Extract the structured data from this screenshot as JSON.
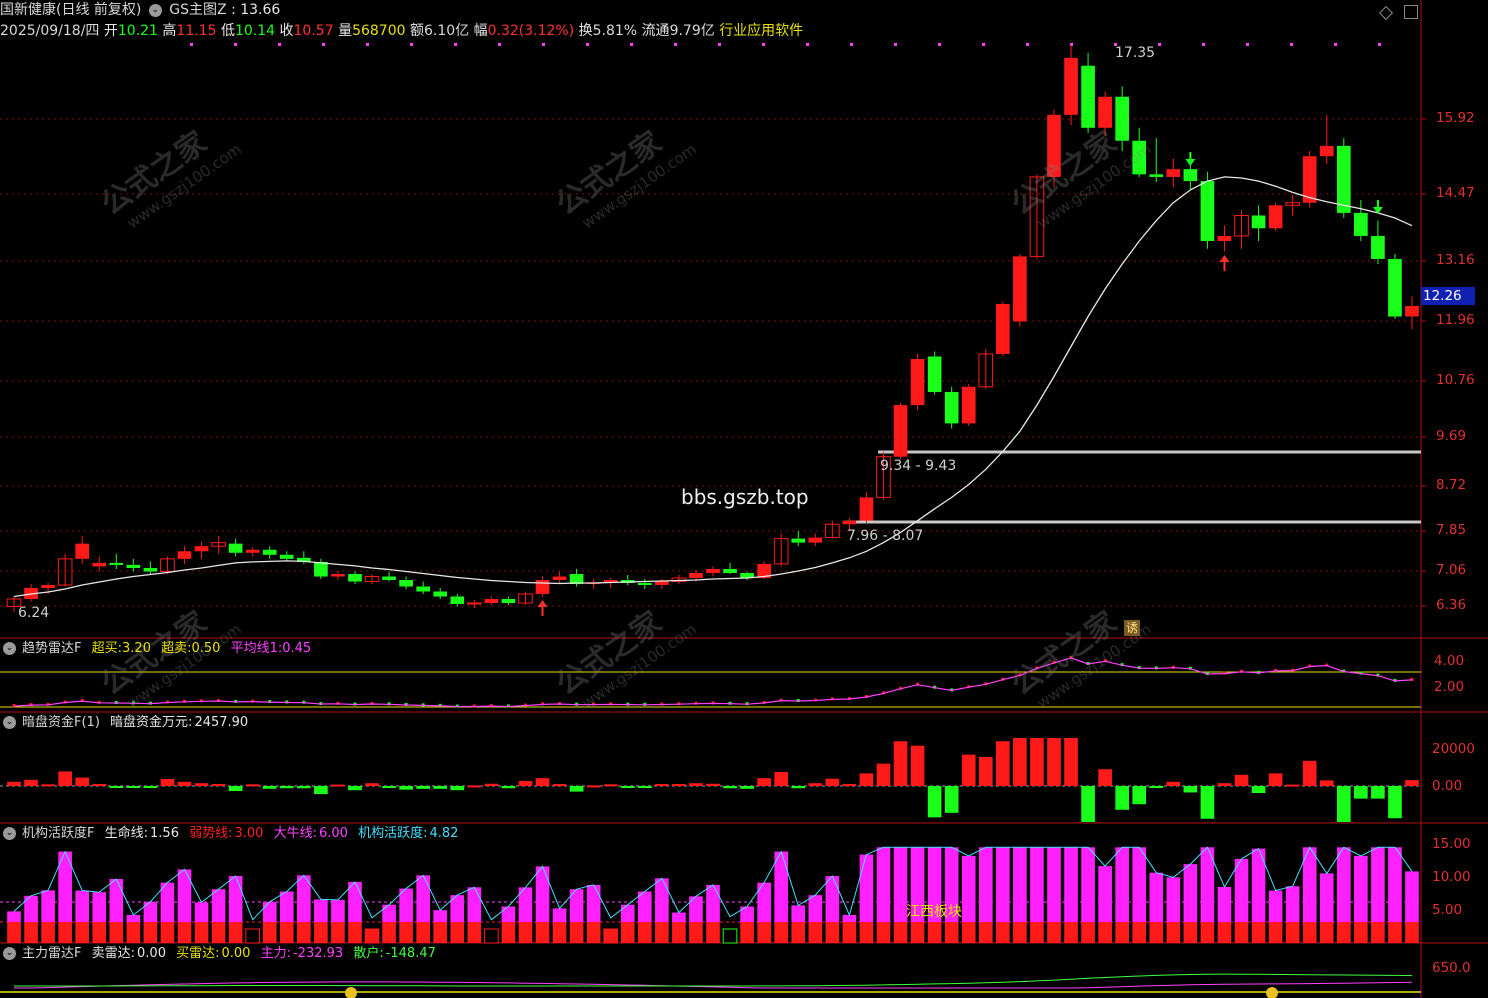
{
  "header": {
    "stock_name": "国新健康(日线 前复权)",
    "indicator_name": "GS主图Z",
    "indicator_value": ": 13.66",
    "date": "2025/09/18/四",
    "open_label": "开",
    "open": "10.21",
    "high_label": "高",
    "high": "11.15",
    "low_label": "低",
    "low": "10.14",
    "close_label": "收",
    "close": "10.57",
    "vol_label": "量",
    "vol": "568700",
    "amount_label": "额",
    "amount": "6.10亿",
    "chg_label": "幅",
    "chg": "0.32(3.12%)",
    "turnover_label": "换",
    "turnover": "5.81%",
    "float_label": "流通",
    "float": "9.79亿",
    "industry": "行业应用软件"
  },
  "main_chart": {
    "y_ticks": [
      "15.92",
      "14.47",
      "13.16",
      "11.96",
      "10.76",
      "9.69",
      "8.72",
      "7.85",
      "7.06",
      "6.36"
    ],
    "current_price_tag": "12.26",
    "high_mark": "17.35",
    "low_mark": "6.24",
    "zone_upper": "9.34 - 9.43",
    "zone_lower": "7.96 - 8.07",
    "site_text": "bbs.gszb.top",
    "badge": "诱"
  },
  "panel1": {
    "name": "趋势雷达F",
    "buy_label": "超买:",
    "buy": "3.20",
    "sell_label": "超卖:",
    "sell": "0.50",
    "avg_label": "平均线1:",
    "avg": "0.45",
    "y_ticks": [
      "4.00",
      "2.00"
    ]
  },
  "panel2": {
    "name": "暗盘资金F(1)",
    "fund_label": "暗盘资金万元:",
    "fund": "2457.90",
    "y_ticks": [
      "20000",
      "0.00"
    ]
  },
  "panel3": {
    "name": "机构活跃度F",
    "life_label": "生命线:",
    "life": "1.56",
    "weak_label": "弱势线:",
    "weak": "3.00",
    "bull_label": "大牛线:",
    "bull": "6.00",
    "act_label": "机构活跃度:",
    "act": "4.82",
    "y_ticks": [
      "15.00",
      "10.00",
      "5.00"
    ],
    "sector_text": "江西板块"
  },
  "panel4": {
    "name": "主力雷达F",
    "sell_label": "卖雷达:",
    "sell": "0.00",
    "buy_label": "买雷达:",
    "buy": "0.00",
    "main_label": "主力:",
    "main": "-232.93",
    "retail_label": "散户:",
    "retail": "-148.47",
    "y_ticks": [
      "650.0"
    ]
  },
  "watermark": {
    "cn": "公式之家",
    "url": "www.gszj100.com"
  },
  "colors": {
    "up": "#ff1a1a",
    "down": "#1aff1a",
    "ma": "#e8e8e8",
    "grid": "#7a1010",
    "axis": "#b01010"
  },
  "chart_data": {
    "type": "candlestick",
    "candles": [
      [
        6.35,
        6.55,
        6.24,
        6.5
      ],
      [
        6.5,
        6.8,
        6.45,
        6.72
      ],
      [
        6.72,
        6.82,
        6.6,
        6.78
      ],
      [
        6.78,
        7.4,
        6.75,
        7.3
      ],
      [
        7.3,
        7.75,
        7.2,
        7.6
      ],
      [
        7.15,
        7.35,
        7.05,
        7.22
      ],
      [
        7.22,
        7.4,
        7.1,
        7.18
      ],
      [
        7.18,
        7.3,
        7.05,
        7.12
      ],
      [
        7.12,
        7.25,
        7.0,
        7.05
      ],
      [
        7.05,
        7.35,
        7.0,
        7.3
      ],
      [
        7.3,
        7.55,
        7.2,
        7.45
      ],
      [
        7.45,
        7.65,
        7.3,
        7.55
      ],
      [
        7.55,
        7.75,
        7.4,
        7.62
      ],
      [
        7.6,
        7.7,
        7.35,
        7.42
      ],
      [
        7.42,
        7.52,
        7.35,
        7.48
      ],
      [
        7.48,
        7.55,
        7.3,
        7.38
      ],
      [
        7.38,
        7.45,
        7.25,
        7.3
      ],
      [
        7.32,
        7.45,
        7.2,
        7.24
      ],
      [
        7.24,
        7.3,
        6.9,
        6.95
      ],
      [
        6.95,
        7.05,
        6.88,
        7.0
      ],
      [
        7.0,
        7.05,
        6.8,
        6.85
      ],
      [
        6.85,
        7.0,
        6.8,
        6.95
      ],
      [
        6.95,
        7.05,
        6.85,
        6.88
      ],
      [
        6.88,
        6.95,
        6.7,
        6.75
      ],
      [
        6.75,
        6.85,
        6.6,
        6.65
      ],
      [
        6.65,
        6.72,
        6.5,
        6.55
      ],
      [
        6.55,
        6.6,
        6.35,
        6.4
      ],
      [
        6.4,
        6.48,
        6.32,
        6.42
      ],
      [
        6.42,
        6.55,
        6.38,
        6.5
      ],
      [
        6.5,
        6.55,
        6.38,
        6.42
      ],
      [
        6.42,
        6.65,
        6.38,
        6.6
      ],
      [
        6.6,
        6.95,
        6.55,
        6.88
      ],
      [
        6.88,
        7.05,
        6.8,
        6.95
      ],
      [
        7.0,
        7.1,
        6.75,
        6.8
      ],
      [
        6.8,
        6.9,
        6.7,
        6.82
      ],
      [
        6.82,
        6.92,
        6.72,
        6.88
      ],
      [
        6.88,
        6.98,
        6.78,
        6.82
      ],
      [
        6.82,
        6.9,
        6.7,
        6.78
      ],
      [
        6.78,
        6.9,
        6.7,
        6.85
      ],
      [
        6.85,
        6.98,
        6.8,
        6.92
      ],
      [
        6.92,
        7.08,
        6.85,
        7.02
      ],
      [
        7.02,
        7.15,
        6.95,
        7.1
      ],
      [
        7.1,
        7.22,
        7.0,
        7.02
      ],
      [
        7.02,
        7.05,
        6.88,
        6.92
      ],
      [
        6.92,
        7.25,
        6.9,
        7.2
      ],
      [
        7.2,
        7.8,
        7.15,
        7.7
      ],
      [
        7.7,
        7.85,
        7.55,
        7.62
      ],
      [
        7.62,
        7.8,
        7.55,
        7.72
      ],
      [
        7.72,
        8.05,
        7.7,
        7.98
      ],
      [
        7.98,
        8.1,
        7.85,
        8.05
      ],
      [
        8.05,
        8.6,
        8.0,
        8.5
      ],
      [
        8.5,
        9.4,
        8.45,
        9.3
      ],
      [
        9.3,
        10.35,
        9.25,
        10.3
      ],
      [
        10.3,
        11.3,
        10.2,
        11.2
      ],
      [
        11.25,
        11.35,
        10.5,
        10.55
      ],
      [
        10.55,
        10.65,
        9.85,
        9.95
      ],
      [
        9.95,
        10.7,
        9.9,
        10.65
      ],
      [
        10.65,
        11.4,
        10.6,
        11.3
      ],
      [
        11.3,
        12.35,
        11.25,
        12.3
      ],
      [
        11.95,
        13.3,
        11.85,
        13.25
      ],
      [
        13.25,
        14.85,
        13.2,
        14.8
      ],
      [
        14.8,
        16.1,
        14.6,
        16.0
      ],
      [
        16.0,
        17.35,
        15.8,
        17.1
      ],
      [
        16.95,
        17.2,
        15.65,
        15.75
      ],
      [
        15.75,
        16.45,
        15.6,
        16.35
      ],
      [
        16.35,
        16.55,
        15.3,
        15.5
      ],
      [
        15.5,
        15.75,
        14.8,
        14.85
      ],
      [
        14.85,
        15.55,
        14.7,
        14.8
      ],
      [
        14.8,
        15.15,
        14.6,
        14.95
      ],
      [
        14.95,
        15.1,
        14.55,
        14.72
      ],
      [
        14.72,
        14.9,
        13.4,
        13.55
      ],
      [
        13.55,
        13.85,
        13.35,
        13.65
      ],
      [
        13.65,
        14.15,
        13.4,
        14.05
      ],
      [
        14.05,
        14.25,
        13.55,
        13.8
      ],
      [
        13.8,
        14.3,
        13.75,
        14.25
      ],
      [
        14.25,
        14.45,
        14.05,
        14.3
      ],
      [
        14.3,
        15.3,
        14.2,
        15.2
      ],
      [
        15.2,
        16.0,
        15.05,
        15.4
      ],
      [
        15.4,
        15.55,
        14.0,
        14.1
      ],
      [
        14.1,
        14.35,
        13.55,
        13.65
      ],
      [
        13.65,
        13.95,
        13.1,
        13.2
      ],
      [
        13.2,
        13.3,
        12.0,
        12.05
      ],
      [
        12.05,
        12.45,
        11.8,
        12.26
      ]
    ],
    "ma": [
      6.55,
      6.6,
      6.64,
      6.7,
      6.78,
      6.84,
      6.9,
      6.95,
      6.99,
      7.03,
      7.08,
      7.12,
      7.17,
      7.22,
      7.24,
      7.25,
      7.26,
      7.25,
      7.22,
      7.19,
      7.16,
      7.12,
      7.09,
      7.05,
      7.01,
      6.97,
      6.93,
      6.9,
      6.87,
      6.85,
      6.83,
      6.82,
      6.81,
      6.82,
      6.82,
      6.83,
      6.84,
      6.85,
      6.86,
      6.87,
      6.88,
      6.9,
      6.91,
      6.92,
      6.95,
      7.0,
      7.06,
      7.13,
      7.22,
      7.32,
      7.45,
      7.62,
      7.82,
      8.05,
      8.28,
      8.5,
      8.75,
      9.05,
      9.4,
      9.8,
      10.3,
      10.85,
      11.45,
      12.05,
      12.6,
      13.1,
      13.55,
      13.95,
      14.3,
      14.55,
      14.72,
      14.8,
      14.78,
      14.72,
      14.62,
      14.5,
      14.4,
      14.32,
      14.25,
      14.18,
      14.1,
      14.0,
      13.85
    ],
    "y_range": [
      6.0,
      17.8
    ]
  }
}
